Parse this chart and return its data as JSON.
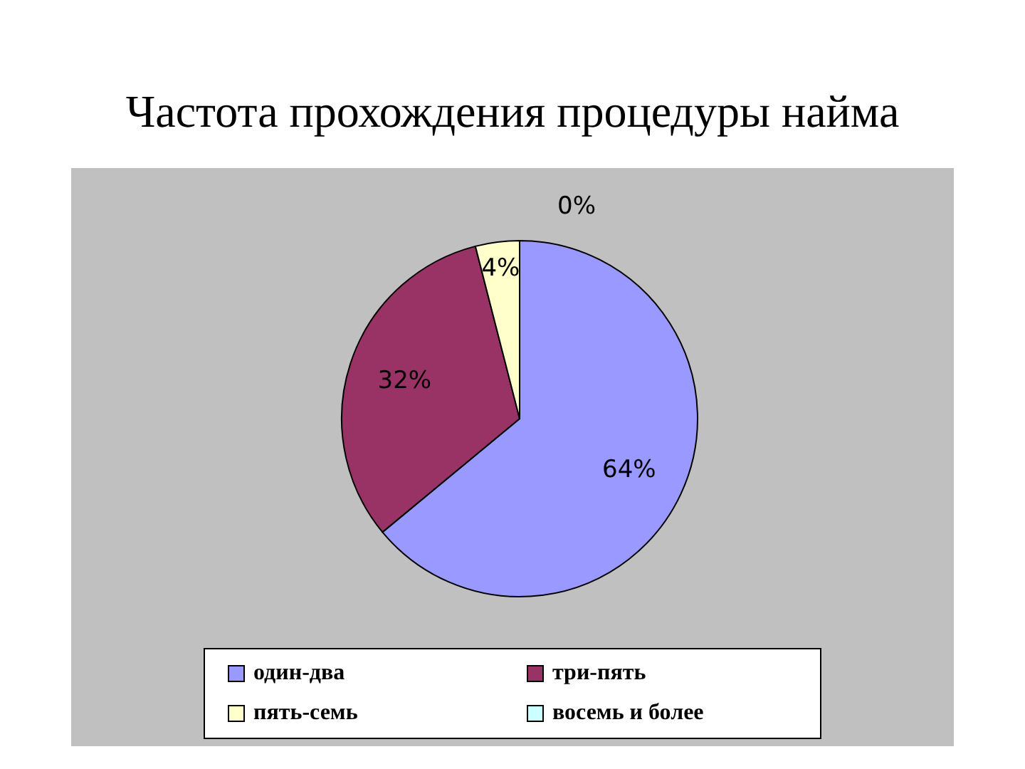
{
  "chart_data": {
    "type": "pie",
    "title": "Частота прохождения процедуры найма",
    "categories": [
      "один-два",
      "три-пять",
      "пять-семь",
      "восемь и более"
    ],
    "values": [
      64,
      32,
      4,
      0
    ],
    "value_labels": [
      "64%",
      "32%",
      "4%",
      "0%"
    ],
    "colors": [
      "#9999ff",
      "#993366",
      "#ffffcc",
      "#ccffff"
    ],
    "legend": "bottom"
  }
}
